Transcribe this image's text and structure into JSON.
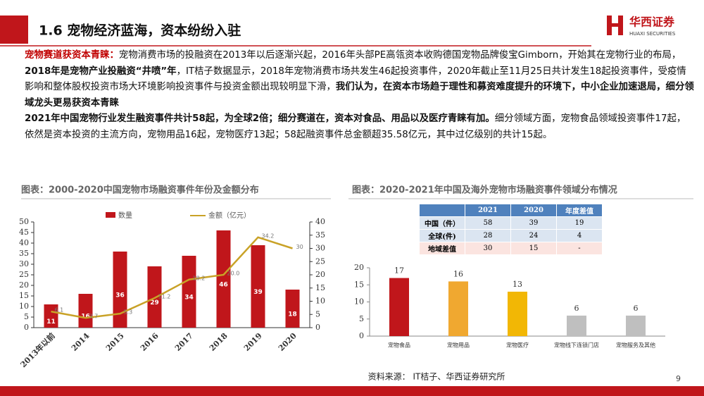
{
  "header": {
    "title": "1.6 宠物经济蓝海，资本纷纷入驻",
    "logo_cn": "华西证券",
    "logo_en": "HUAXI SECURITIES"
  },
  "body": {
    "paragraphs": [
      {
        "runs": [
          {
            "text": "宠物赛道获资本青睐：",
            "bold": true,
            "color": "#c00000"
          },
          {
            "text": "宠物消费市场的投融资在2013年以后逐渐兴起，2016年头部PE高瓴资本收购德国宠物品牌俊宝Gimborn，开始其在宠物行业的布局，"
          },
          {
            "text": "2018年是宠物产业投融资“井喷”年",
            "bold": true
          },
          {
            "text": "，IT桔子数据显示，2018年宠物消费市场共发生46起投资事件，2020年截止至11月25日共计发生18起投资事件，受疫情影响和整体股权投资市场大环境影响投资事件与投资金额出现较明显下滑，"
          },
          {
            "text": "我们认为，在资本市场趋于理性和募资难度提升的环境下，中小企业加速退局，细分领域龙头更易获资本青睐",
            "bold": true
          }
        ]
      },
      {
        "runs": [
          {
            "text": "2021年中国宠物行业发生融资事件共计58起，为全球2倍；细分赛道在，资本对食品、用品以及医疗青睐有加。",
            "bold": true
          },
          {
            "text": "细分领域方面，宠物食品领域投资事件17起，依然是资本投资的主流方向，宠物用品16起，宠物医疗13起；58起融资事件总金额超35.58亿元，其中过亿级别的共计15起。"
          }
        ]
      }
    ]
  },
  "chart_data": [
    {
      "type": "combo",
      "title": "图表：2000-2020中国宠物市场融资事件年份及金额分布",
      "categories": [
        "2013年以前",
        "2014",
        "2015",
        "2016",
        "2017",
        "2018",
        "2019",
        "2020"
      ],
      "series": [
        {
          "name": "数量",
          "type": "bar",
          "color": "#c0161b",
          "values": [
            11,
            16,
            36,
            29,
            34,
            46,
            39,
            18
          ]
        },
        {
          "name": "金额（亿元）",
          "type": "line",
          "color": "#c9a227",
          "axis": "y2",
          "values": [
            6.1,
            3.7,
            5.3,
            11.2,
            18.2,
            20,
            34.2,
            30
          ],
          "value_labels": [
            "6.1",
            "3.7",
            "5.3",
            "11.2",
            "18.2",
            "20.0",
            "34.2",
            "30"
          ]
        }
      ],
      "ylim": [
        0,
        50
      ],
      "yticks": [
        0,
        5,
        10,
        15,
        20,
        25,
        30,
        35,
        40,
        45,
        50
      ],
      "y2lim": [
        0,
        40
      ],
      "y2ticks": [
        0,
        5,
        10,
        15,
        20,
        25,
        30,
        35,
        40
      ]
    },
    {
      "type": "bar",
      "title": "图表：2020-2021年中国及海外宠物市场融资事件领域分布情况",
      "categories": [
        "宠物食品",
        "宠物用品",
        "宠物医疗",
        "宠物线下连锁门店",
        "宠物服务及其他"
      ],
      "values": [
        17,
        16,
        13,
        6,
        6
      ],
      "colors": [
        "#c0161b",
        "#f0a830",
        "#f2b705",
        "#bfbfbf",
        "#bfbfbf"
      ],
      "ylim": [
        0,
        20
      ],
      "yticks": [
        0,
        5,
        10,
        15,
        20
      ]
    }
  ],
  "table": {
    "header": [
      "2021",
      "2020",
      "年度差值"
    ],
    "rows": [
      [
        "中国（件）",
        "58",
        "39",
        "19"
      ],
      [
        "全球(件)",
        "28",
        "24",
        "4"
      ],
      [
        "地域差值",
        "30",
        "15",
        "-"
      ]
    ]
  },
  "footer": {
    "source": "资料来源： IT桔子、华西证券研究所",
    "page": "9"
  }
}
